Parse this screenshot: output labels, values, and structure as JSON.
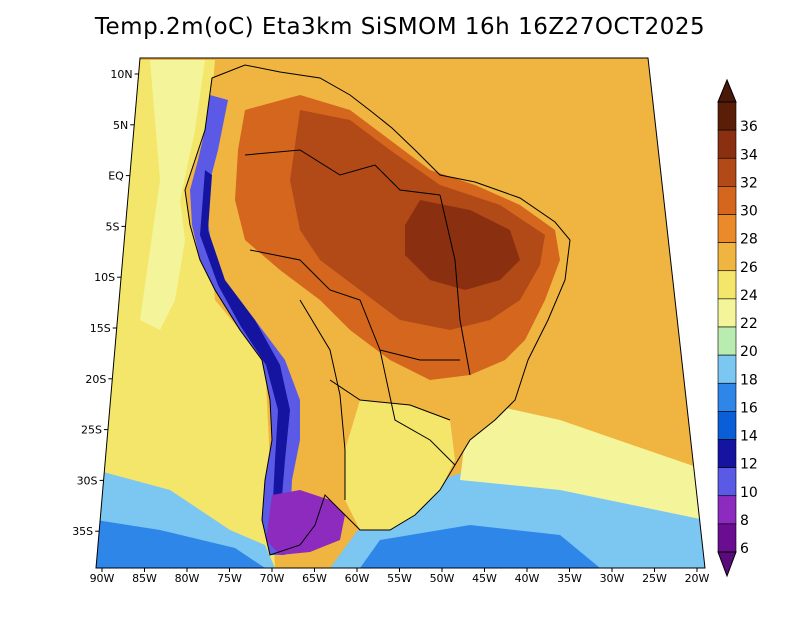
{
  "title": "Temp.2m(oC) Eta3km SiSMOM 16h 16Z27OCT2025",
  "lat_ticks": [
    "10N",
    "5N",
    "EQ",
    "5S",
    "10S",
    "15S",
    "20S",
    "25S",
    "30S",
    "35S"
  ],
  "lon_ticks": [
    "90W",
    "85W",
    "80W",
    "75W",
    "70W",
    "65W",
    "60W",
    "55W",
    "50W",
    "45W",
    "40W",
    "35W",
    "30W",
    "25W",
    "20W"
  ],
  "colorbar": {
    "labels": [
      "6",
      "8",
      "10",
      "12",
      "14",
      "16",
      "18",
      "20",
      "22",
      "24",
      "26",
      "28",
      "30",
      "32",
      "34",
      "36"
    ],
    "colors": [
      "#6a0d91",
      "#8e2bbf",
      "#5a5ae6",
      "#1414a0",
      "#0a5fd8",
      "#2e86e8",
      "#7cc6f2",
      "#b9ecb0",
      "#f4f59a",
      "#f4e66a",
      "#f0b440",
      "#ea8a2a",
      "#d4661e",
      "#b24a18",
      "#8a3010",
      "#5a1e08"
    ],
    "under_color": "#5a0a7a",
    "over_color": "#4a1808"
  },
  "fill_colors": {
    "ocean_warm": "#f0b440",
    "ocean_mild": "#f4e66a",
    "ocean_cool": "#f4f59a",
    "ocean_cold": "#7cc6f2",
    "ocean_colder": "#2e86e8",
    "land_hot": "#d4661e",
    "land_very_hot": "#b24a18",
    "land_extreme": "#8a3010",
    "andes": "#5a5ae6",
    "andes_high": "#1414a0",
    "patagonia": "#8e2bbf",
    "border": "#000000"
  }
}
